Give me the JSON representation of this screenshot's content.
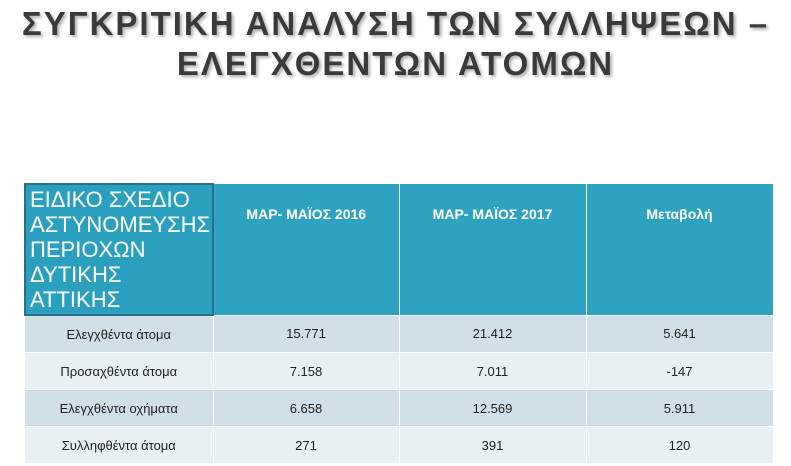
{
  "title": [
    "ΣΥΓΚΡΙΤΙΚΗ ΑΝΑΛΥΣΗ ΤΩΝ ΣΥΛΛΗΨΕΩΝ –",
    "ΕΛΕΓΧΘΕΝΤΩΝ ΑΤΟΜΩΝ"
  ],
  "table": {
    "header": [
      "ΕΙΔΙΚΟ ΣΧΕΔΙΟ ΑΣΤΥΝΟΜΕΥΣΗΣ ΠΕΡΙΟΧΩΝ ΔΥΤΙΚΗΣ ΑΤΤΙΚΗΣ",
      "ΜΑΡ- ΜΑΪΟΣ 2016",
      "ΜΑΡ- ΜΑΪΟΣ 2017",
      "Μεταβολή"
    ],
    "rows": [
      [
        "Ελεγχθέντα άτομα",
        "15.771",
        "21.412",
        "5.641"
      ],
      [
        "Προσαχθέντα άτομα",
        "7.158",
        "7.011",
        "-147"
      ],
      [
        "Ελεγχθέντα οχήματα",
        "6.658",
        "12.569",
        "5.911"
      ],
      [
        "Συλληφθέντα άτομα",
        "271",
        "391",
        "120"
      ]
    ]
  }
}
